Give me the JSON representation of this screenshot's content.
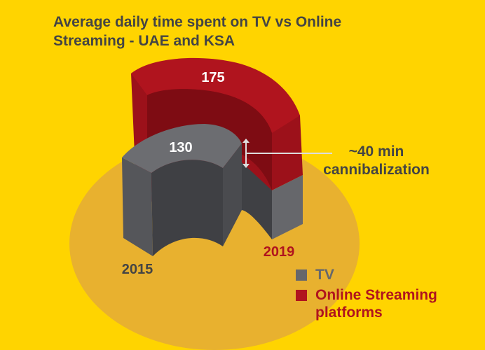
{
  "chart_data": {
    "type": "bar",
    "title": "Average daily time spent on TV vs Online Streaming - UAE and KSA",
    "categories": [
      "2015",
      "2019"
    ],
    "series": [
      {
        "name": "TV",
        "values": [
          130,
          0
        ]
      },
      {
        "name": "Online Streaming platforms",
        "values": [
          0,
          175
        ]
      }
    ],
    "annotation": "~40 min cannibalization",
    "legend": "bottom-right",
    "grid": false
  },
  "colors": {
    "background": "#FFD400",
    "base_disc": "#E8B12F",
    "tv": "#66676B",
    "tv_dark": "#3F4044",
    "streaming": "#B0141E",
    "streaming_dark": "#7E0C13",
    "text": "#444444",
    "year_2015": "#444444",
    "year_2019": "#B0141E"
  },
  "labels": {
    "tv_value": "130",
    "streaming_value": "175",
    "year_2015": "2015",
    "year_2019": "2019"
  },
  "legend": {
    "tv": "TV",
    "streaming_line1": "Online Streaming",
    "streaming_line2": "platforms"
  }
}
